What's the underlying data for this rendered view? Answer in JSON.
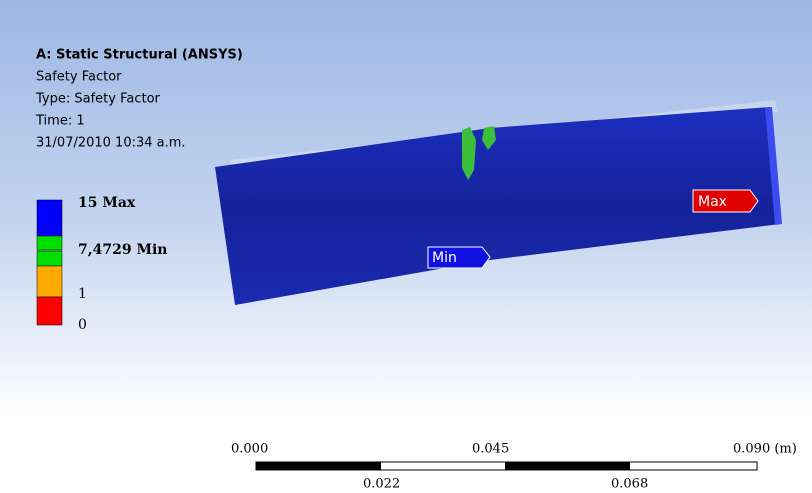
{
  "header": {
    "title": "A: Static Structural (ANSYS)",
    "lines": [
      "Safety Factor",
      "Type: Safety Factor",
      "Time: 1",
      "31/07/2010 10:34 a.m."
    ]
  },
  "legend": {
    "entries": [
      "15 Max",
      "7,4729 Min",
      "1",
      "0"
    ]
  },
  "probes": {
    "min": "Min",
    "max": "Max"
  },
  "scale_bar": {
    "top_labels": [
      "0.000",
      "0.045",
      "0.090 (m)"
    ],
    "bottom_labels": [
      "0.022",
      "0.068"
    ]
  }
}
